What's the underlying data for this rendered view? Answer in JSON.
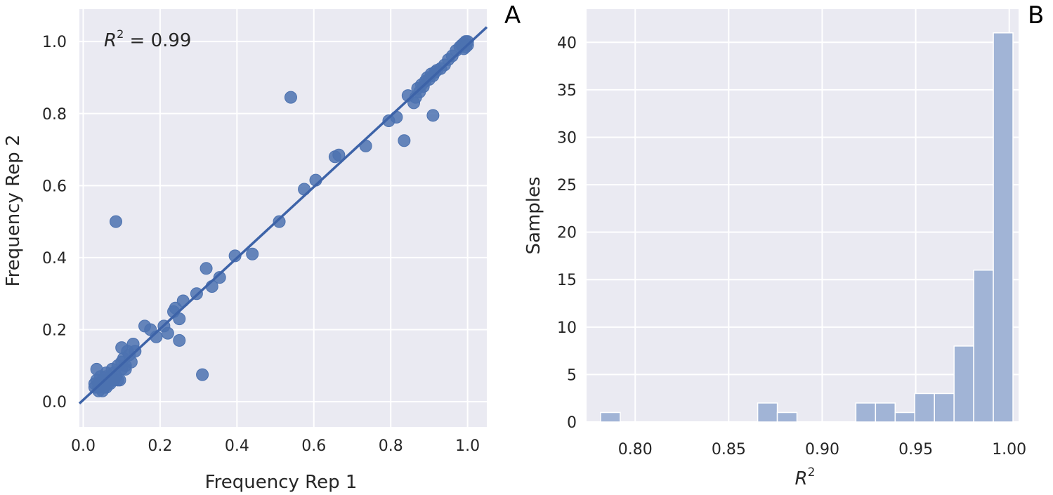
{
  "chart_data": [
    {
      "type": "scatter",
      "panel_label": "A",
      "xlabel": "Frequency Rep 1",
      "ylabel": "Frequency Rep 2",
      "xlim": [
        -0.01,
        1.05
      ],
      "ylim": [
        -0.07,
        1.09
      ],
      "xticks": [
        0.0,
        0.2,
        0.4,
        0.6,
        0.8,
        1.0
      ],
      "yticks": [
        0.0,
        0.2,
        0.4,
        0.6,
        0.8,
        1.0
      ],
      "xtick_labels": [
        "0.0",
        "0.2",
        "0.4",
        "0.6",
        "0.8",
        "1.0"
      ],
      "ytick_labels": [
        "0.0",
        "0.2",
        "0.4",
        "0.6",
        "0.8",
        "1.0"
      ],
      "annotation": {
        "symbol": "R",
        "exp": "2",
        "text": " = 0.99"
      },
      "grid": true,
      "fit_line": {
        "x": [
          -0.01,
          1.05
        ],
        "y": [
          -0.005,
          1.04
        ]
      },
      "color": "#4c72b0",
      "points": [
        [
          0.03,
          0.04
        ],
        [
          0.03,
          0.05
        ],
        [
          0.035,
          0.06
        ],
        [
          0.04,
          0.05
        ],
        [
          0.04,
          0.04
        ],
        [
          0.045,
          0.07
        ],
        [
          0.05,
          0.06
        ],
        [
          0.05,
          0.05
        ],
        [
          0.055,
          0.04
        ],
        [
          0.06,
          0.07
        ],
        [
          0.06,
          0.08
        ],
        [
          0.065,
          0.05
        ],
        [
          0.07,
          0.06
        ],
        [
          0.07,
          0.07
        ],
        [
          0.075,
          0.09
        ],
        [
          0.08,
          0.08
        ],
        [
          0.085,
          0.07
        ],
        [
          0.09,
          0.1
        ],
        [
          0.09,
          0.06
        ],
        [
          0.1,
          0.11
        ],
        [
          0.1,
          0.09
        ],
        [
          0.105,
          0.12
        ],
        [
          0.11,
          0.1
        ],
        [
          0.115,
          0.14
        ],
        [
          0.12,
          0.13
        ],
        [
          0.125,
          0.11
        ],
        [
          0.13,
          0.16
        ],
        [
          0.135,
          0.14
        ],
        [
          0.04,
          0.03
        ],
        [
          0.035,
          0.09
        ],
        [
          0.05,
          0.03
        ],
        [
          0.06,
          0.04
        ],
        [
          0.07,
          0.05
        ],
        [
          0.08,
          0.06
        ],
        [
          0.095,
          0.06
        ],
        [
          0.11,
          0.09
        ],
        [
          0.1,
          0.15
        ],
        [
          0.085,
          0.5
        ],
        [
          0.16,
          0.21
        ],
        [
          0.175,
          0.2
        ],
        [
          0.19,
          0.18
        ],
        [
          0.21,
          0.21
        ],
        [
          0.22,
          0.19
        ],
        [
          0.235,
          0.25
        ],
        [
          0.24,
          0.26
        ],
        [
          0.25,
          0.23
        ],
        [
          0.26,
          0.28
        ],
        [
          0.25,
          0.17
        ],
        [
          0.295,
          0.3
        ],
        [
          0.31,
          0.075
        ],
        [
          0.32,
          0.37
        ],
        [
          0.335,
          0.32
        ],
        [
          0.355,
          0.345
        ],
        [
          0.395,
          0.405
        ],
        [
          0.44,
          0.41
        ],
        [
          0.51,
          0.5
        ],
        [
          0.54,
          0.845
        ],
        [
          0.575,
          0.59
        ],
        [
          0.605,
          0.615
        ],
        [
          0.655,
          0.68
        ],
        [
          0.665,
          0.685
        ],
        [
          0.735,
          0.71
        ],
        [
          0.795,
          0.78
        ],
        [
          0.815,
          0.79
        ],
        [
          0.835,
          0.725
        ],
        [
          0.845,
          0.85
        ],
        [
          0.86,
          0.83
        ],
        [
          0.865,
          0.845
        ],
        [
          0.87,
          0.87
        ],
        [
          0.875,
          0.86
        ],
        [
          0.88,
          0.88
        ],
        [
          0.885,
          0.875
        ],
        [
          0.89,
          0.89
        ],
        [
          0.895,
          0.9
        ],
        [
          0.9,
          0.895
        ],
        [
          0.905,
          0.91
        ],
        [
          0.91,
          0.905
        ],
        [
          0.91,
          0.795
        ],
        [
          0.915,
          0.915
        ],
        [
          0.92,
          0.92
        ],
        [
          0.93,
          0.925
        ],
        [
          0.94,
          0.935
        ],
        [
          0.95,
          0.95
        ],
        [
          0.96,
          0.96
        ],
        [
          0.97,
          0.975
        ],
        [
          0.98,
          0.985
        ],
        [
          0.985,
          0.99
        ],
        [
          0.99,
          0.995
        ],
        [
          0.995,
          1.0
        ],
        [
          1.0,
          1.0
        ],
        [
          0.99,
          0.98
        ],
        [
          1.0,
          0.99
        ],
        [
          0.995,
          0.985
        ]
      ]
    },
    {
      "type": "bar",
      "panel_label": "B",
      "xlabel": {
        "symbol": "R",
        "exp": "2"
      },
      "ylabel": "Samples",
      "xlim": [
        0.774,
        1.005
      ],
      "ylim": [
        0,
        43.5
      ],
      "xticks": [
        0.8,
        0.85,
        0.9,
        0.95,
        1.0
      ],
      "yticks": [
        0,
        5,
        10,
        15,
        20,
        25,
        30,
        35,
        40
      ],
      "xtick_labels": [
        "0.80",
        "0.85",
        "0.90",
        "0.95",
        "1.00"
      ],
      "ytick_labels": [
        "0",
        "5",
        "10",
        "15",
        "20",
        "25",
        "30",
        "35",
        "40"
      ],
      "grid": true,
      "color": "#a1b4d6",
      "bin_width": 0.0105,
      "bin_starts": [
        0.7815,
        0.792,
        0.8025,
        0.813,
        0.8235,
        0.834,
        0.8445,
        0.855,
        0.8655,
        0.876,
        0.8865,
        0.897,
        0.9075,
        0.918,
        0.9285,
        0.939,
        0.9495,
        0.96,
        0.9705,
        0.981
      ],
      "values": [
        1,
        0,
        0,
        0,
        0,
        0,
        0,
        0,
        2,
        1,
        0,
        0,
        0,
        2,
        2,
        1,
        3,
        3,
        8,
        16
      ],
      "extra_bar": {
        "start": 0.9915,
        "value": 41
      }
    }
  ]
}
